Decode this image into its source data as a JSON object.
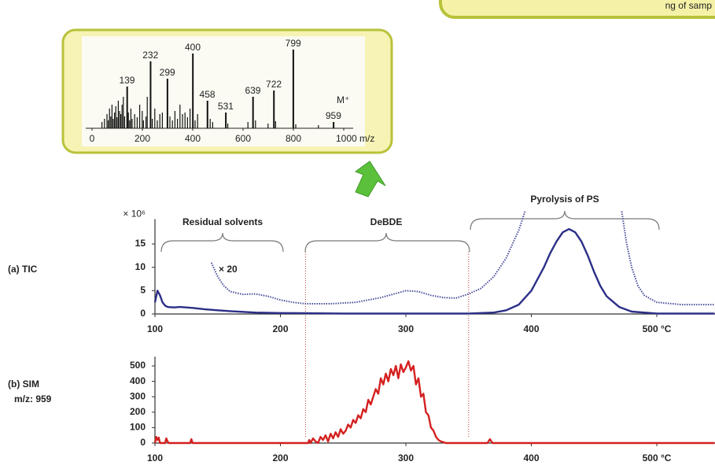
{
  "banner": "ng of samp",
  "chart_data": [
    {
      "type": "stem",
      "xlim": [
        0,
        1000
      ],
      "ylim": [
        0,
        100
      ],
      "xticks": [
        0,
        200,
        400,
        600,
        800,
        {
          "value": 1000,
          "label": "1000 m/z"
        }
      ],
      "color": "#111111",
      "peaks": {
        "x": [
          40,
          50,
          60,
          65,
          70,
          75,
          80,
          85,
          90,
          95,
          100,
          105,
          110,
          115,
          120,
          125,
          130,
          145,
          150,
          155,
          160,
          170,
          180,
          190,
          200,
          205,
          215,
          220,
          240,
          250,
          260,
          270,
          280,
          310,
          320,
          330,
          340,
          350,
          360,
          370,
          380,
          390,
          410,
          420,
          470,
          480,
          540,
          620,
          650,
          700,
          730,
          810,
          900
        ],
        "values": [
          8,
          12,
          18,
          10,
          25,
          15,
          30,
          12,
          20,
          28,
          14,
          35,
          22,
          18,
          30,
          40,
          15,
          20,
          10,
          25,
          12,
          18,
          14,
          30,
          22,
          10,
          15,
          40,
          12,
          25,
          10,
          18,
          20,
          15,
          10,
          22,
          12,
          30,
          18,
          20,
          14,
          25,
          10,
          18,
          12,
          8,
          6,
          8,
          10,
          6,
          9,
          5,
          4
        ]
      },
      "labeled_peaks": {
        "x": [
          139,
          232,
          299,
          400,
          458,
          531,
          639,
          722,
          799,
          959
        ],
        "values": [
          53,
          85,
          63,
          95,
          35,
          20,
          40,
          48,
          100,
          8
        ],
        "label_colors": [
          "#111111",
          "#111111",
          "#111111",
          "#111111",
          "#111111",
          "#111111",
          "#111111",
          "#111111",
          "#e04a1a",
          "#d42020"
        ]
      },
      "annotations": [
        "M⁺"
      ]
    },
    {
      "type": "line",
      "panel_label": "(a) TIC",
      "y_unit": "× 10⁶",
      "xlim": [
        100,
        546
      ],
      "ylim": [
        0,
        20
      ],
      "xticks": [
        100,
        200,
        300,
        400,
        {
          "value": 500,
          "label": "500 °C"
        }
      ],
      "yticks": [
        0,
        5,
        10,
        15
      ],
      "region": [
        220,
        350
      ],
      "region_color": "#c0392b",
      "annotations": [
        "Residual solvents",
        "DeBDE",
        "Pyrolysis of PS",
        "× 20"
      ],
      "series": [
        {
          "color": "#2b2f86",
          "dash": false,
          "x": [
            100,
            102,
            104,
            106,
            108,
            110,
            115,
            120,
            130,
            140,
            150,
            160,
            180,
            200,
            250,
            300,
            350,
            370,
            380,
            390,
            400,
            410,
            415,
            420,
            425,
            430,
            435,
            440,
            445,
            450,
            455,
            460,
            470,
            480,
            500,
            546
          ],
          "values": [
            2.5,
            5,
            4,
            2.5,
            1.8,
            1.5,
            1.4,
            1.5,
            1.3,
            1,
            0.8,
            0.6,
            0.3,
            0.2,
            0.1,
            0.1,
            0.1,
            0.3,
            0.8,
            2,
            5,
            10,
            13,
            15.5,
            17.5,
            18.2,
            17.5,
            15.5,
            12.5,
            9,
            6,
            3.8,
            1.5,
            0.5,
            0.1,
            0.1
          ]
        },
        {
          "color": "#4a4f9a",
          "dash": true,
          "x": [
            145,
            150,
            155,
            160,
            170,
            180,
            190,
            200,
            210,
            220,
            240,
            260,
            280,
            300,
            310,
            320,
            330,
            340,
            350,
            360,
            370,
            380,
            390,
            395,
            430,
            472,
            476,
            480,
            485,
            490,
            500,
            520,
            546
          ],
          "values": [
            11,
            8,
            6,
            4.8,
            4.2,
            4.3,
            3.8,
            3,
            2.5,
            2.2,
            2.2,
            2.5,
            3.5,
            5,
            4.8,
            4,
            3.5,
            3.4,
            4.3,
            5.5,
            8,
            12,
            18,
            22,
            null,
            22,
            15,
            10,
            6,
            4,
            2.5,
            2,
            2
          ]
        }
      ]
    },
    {
      "type": "line",
      "panel_label": [
        "(b) SIM",
        "m/z: 959"
      ],
      "xlim": [
        100,
        546
      ],
      "ylim": [
        0,
        550
      ],
      "xticks": [
        100,
        200,
        300,
        400,
        {
          "value": 500,
          "label": "500 °C"
        }
      ],
      "yticks": [
        0,
        100,
        200,
        300,
        400,
        500
      ],
      "series": [
        {
          "color": "#d42020",
          "dash": false,
          "x": [
            100,
            101,
            102,
            103,
            104,
            108,
            109,
            110,
            111,
            115,
            128,
            129,
            130,
            131,
            135,
            200,
            220,
            222,
            223,
            224,
            226,
            228,
            230,
            232,
            234,
            236,
            238,
            240,
            242,
            244,
            246,
            248,
            250,
            252,
            254,
            256,
            258,
            260,
            262,
            264,
            266,
            268,
            270,
            272,
            274,
            276,
            278,
            280,
            282,
            284,
            286,
            288,
            290,
            292,
            294,
            296,
            298,
            300,
            302,
            304,
            306,
            308,
            310,
            312,
            314,
            316,
            318,
            320,
            322,
            324,
            326,
            328,
            330,
            332,
            334,
            340,
            365,
            367,
            369,
            380,
            546
          ],
          "values": [
            0,
            40,
            20,
            35,
            0,
            0,
            30,
            10,
            0,
            0,
            0,
            25,
            0,
            0,
            0,
            0,
            0,
            0,
            20,
            0,
            30,
            10,
            0,
            40,
            20,
            50,
            10,
            60,
            30,
            70,
            40,
            90,
            60,
            80,
            120,
            100,
            150,
            130,
            180,
            160,
            220,
            200,
            280,
            250,
            300,
            350,
            320,
            420,
            380,
            450,
            400,
            480,
            440,
            500,
            420,
            510,
            460,
            490,
            530,
            470,
            500,
            380,
            420,
            300,
            320,
            200,
            180,
            100,
            80,
            40,
            20,
            10,
            5,
            0,
            0,
            0,
            0,
            25,
            0,
            0,
            0
          ]
        }
      ]
    }
  ]
}
